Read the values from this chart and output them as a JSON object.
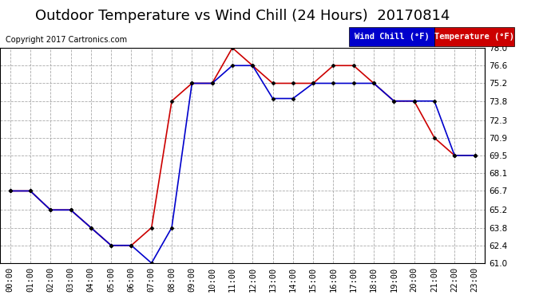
{
  "title": "Outdoor Temperature vs Wind Chill (24 Hours)  20170814",
  "copyright": "Copyright 2017 Cartronics.com",
  "background_color": "#ffffff",
  "grid_color": "#aaaaaa",
  "x_labels": [
    "00:00",
    "01:00",
    "02:00",
    "03:00",
    "04:00",
    "05:00",
    "06:00",
    "07:00",
    "08:00",
    "09:00",
    "10:00",
    "11:00",
    "12:00",
    "13:00",
    "14:00",
    "15:00",
    "16:00",
    "17:00",
    "18:00",
    "19:00",
    "20:00",
    "21:00",
    "22:00",
    "23:00"
  ],
  "y_ticks": [
    61.0,
    62.4,
    63.8,
    65.2,
    66.7,
    68.1,
    69.5,
    70.9,
    72.3,
    73.8,
    75.2,
    76.6,
    78.0
  ],
  "ylim": [
    61.0,
    78.0
  ],
  "temperature": [
    66.7,
    66.7,
    65.2,
    65.2,
    63.8,
    62.4,
    62.4,
    63.8,
    73.8,
    75.2,
    75.2,
    78.0,
    76.6,
    75.2,
    75.2,
    75.2,
    76.6,
    76.6,
    75.2,
    73.8,
    73.8,
    70.9,
    69.5,
    69.5
  ],
  "wind_chill": [
    66.7,
    66.7,
    65.2,
    65.2,
    63.8,
    62.4,
    62.4,
    61.0,
    63.8,
    75.2,
    75.2,
    76.6,
    76.6,
    74.0,
    74.0,
    75.2,
    75.2,
    75.2,
    75.2,
    73.8,
    73.8,
    73.8,
    69.5,
    69.5
  ],
  "temp_color": "#cc0000",
  "wind_color": "#0000cc",
  "legend_wind_bg": "#0000cc",
  "legend_temp_bg": "#cc0000",
  "legend_wind_text": "Wind Chill (°F)",
  "legend_temp_text": "Temperature (°F)",
  "title_fontsize": 13,
  "copyright_fontsize": 7,
  "tick_fontsize": 7.5
}
